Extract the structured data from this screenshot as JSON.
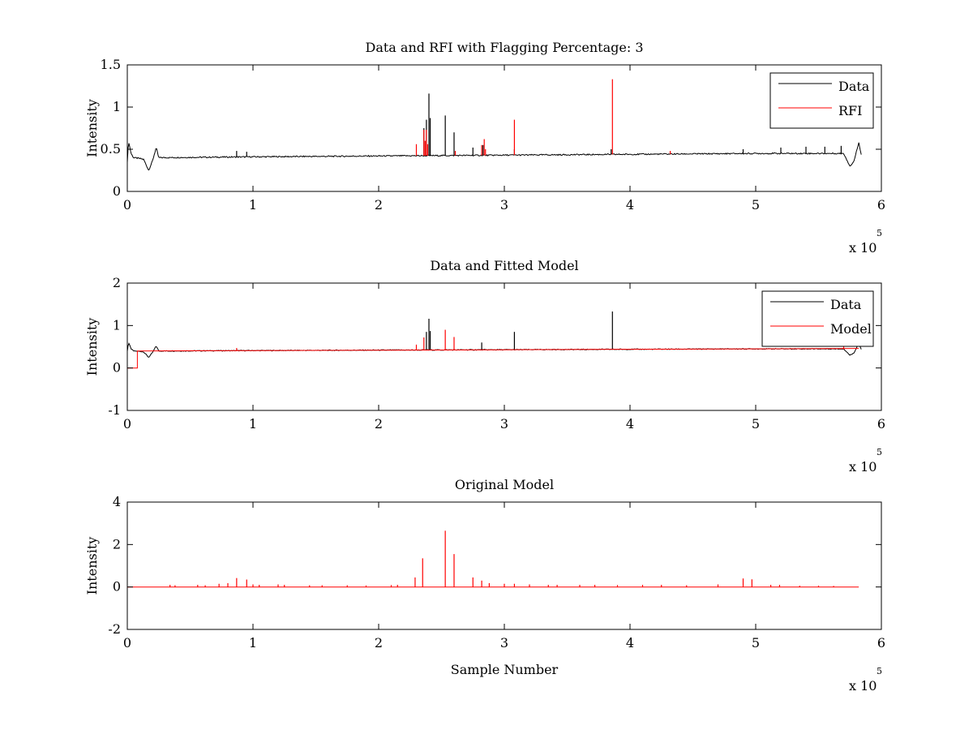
{
  "chart_data": [
    {
      "type": "line",
      "title": "Data and RFI with Flagging Percentage: 3",
      "xlabel": "",
      "ylabel": "Intensity",
      "xlim": [
        0,
        6
      ],
      "ylim": [
        0,
        1.5
      ],
      "xticks": [
        0,
        1,
        2,
        3,
        4,
        5,
        6
      ],
      "yticks": [
        0,
        0.5,
        1,
        1.5
      ],
      "x_multiplier": "x 10",
      "x_multiplier_exp": "5",
      "legend": {
        "location": "top-right"
      },
      "baseline": [
        [
          0,
          0.35
        ],
        [
          0.01,
          0.6
        ],
        [
          0.03,
          0.45
        ],
        [
          0.05,
          0.4
        ],
        [
          0.1,
          0.39
        ],
        [
          0.13,
          0.38
        ],
        [
          0.17,
          0.25
        ],
        [
          0.2,
          0.36
        ],
        [
          0.23,
          0.52
        ],
        [
          0.25,
          0.4
        ],
        [
          1,
          0.41
        ],
        [
          2,
          0.42
        ],
        [
          3,
          0.43
        ],
        [
          4,
          0.44
        ],
        [
          5,
          0.45
        ],
        [
          5.7,
          0.45
        ],
        [
          5.75,
          0.3
        ],
        [
          5.78,
          0.35
        ],
        [
          5.82,
          0.58
        ],
        [
          5.84,
          0.44
        ]
      ],
      "series": [
        {
          "name": "Data",
          "color": "#000000",
          "spikes": [
            [
              0.87,
              0.48
            ],
            [
              0.95,
              0.47
            ],
            [
              2.36,
              0.75
            ],
            [
              2.38,
              0.85
            ],
            [
              2.4,
              1.16
            ],
            [
              2.41,
              0.87
            ],
            [
              2.53,
              0.9
            ],
            [
              2.6,
              0.7
            ],
            [
              2.75,
              0.52
            ],
            [
              2.83,
              0.55
            ],
            [
              3.08,
              0.5
            ],
            [
              3.85,
              0.5
            ],
            [
              4.9,
              0.5
            ],
            [
              5.2,
              0.52
            ],
            [
              5.4,
              0.53
            ],
            [
              5.55,
              0.53
            ],
            [
              5.68,
              0.54
            ]
          ]
        },
        {
          "name": "RFI",
          "color": "#ff0000",
          "spikes": [
            [
              2.3,
              0.56
            ],
            [
              2.36,
              0.73
            ],
            [
              2.37,
              0.6
            ],
            [
              2.38,
              0.73
            ],
            [
              2.39,
              0.56
            ],
            [
              2.61,
              0.48
            ],
            [
              2.82,
              0.55
            ],
            [
              2.84,
              0.62
            ],
            [
              2.85,
              0.5
            ],
            [
              3.08,
              0.85
            ],
            [
              3.86,
              1.33
            ],
            [
              4.32,
              0.48
            ]
          ]
        }
      ]
    },
    {
      "type": "line",
      "title": "Data and Fitted Model",
      "xlabel": "",
      "ylabel": "Intensity",
      "xlim": [
        0,
        6
      ],
      "ylim": [
        -1,
        2
      ],
      "xticks": [
        0,
        1,
        2,
        3,
        4,
        5,
        6
      ],
      "yticks": [
        -1,
        0,
        1,
        2
      ],
      "x_multiplier": "x 10",
      "x_multiplier_exp": "5",
      "legend": {
        "location": "top-right"
      },
      "series": [
        {
          "name": "Data",
          "color": "#000000",
          "points": [
            [
              0,
              0.4
            ],
            [
              0.01,
              0.6
            ],
            [
              0.03,
              0.45
            ],
            [
              0.05,
              0.4
            ],
            [
              0.1,
              0.39
            ],
            [
              0.13,
              0.38
            ],
            [
              0.17,
              0.25
            ],
            [
              0.2,
              0.36
            ],
            [
              0.23,
              0.52
            ],
            [
              0.25,
              0.4
            ],
            [
              1,
              0.41
            ],
            [
              2,
              0.42
            ],
            [
              3,
              0.43
            ],
            [
              4,
              0.44
            ],
            [
              5,
              0.45
            ],
            [
              5.7,
              0.45
            ],
            [
              5.75,
              0.3
            ],
            [
              5.78,
              0.35
            ],
            [
              5.82,
              0.58
            ],
            [
              5.84,
              0.44
            ]
          ],
          "spikes": [
            [
              2.38,
              0.85
            ],
            [
              2.4,
              1.16
            ],
            [
              2.41,
              0.87
            ],
            [
              2.82,
              0.6
            ],
            [
              3.08,
              0.85
            ],
            [
              3.86,
              1.33
            ]
          ]
        },
        {
          "name": "Model",
          "color": "#ff0000",
          "points": [
            [
              0,
              0
            ],
            [
              0.08,
              0
            ],
            [
              0.08,
              0.4
            ],
            [
              1,
              0.41
            ],
            [
              2,
              0.42
            ],
            [
              3,
              0.43
            ],
            [
              4,
              0.44
            ],
            [
              5,
              0.45
            ],
            [
              5.82,
              0.46
            ]
          ],
          "spikes": [
            [
              0.87,
              0.47
            ],
            [
              2.3,
              0.55
            ],
            [
              2.36,
              0.72
            ],
            [
              2.53,
              0.9
            ],
            [
              2.6,
              0.73
            ],
            [
              5.7,
              0.52
            ]
          ]
        }
      ]
    },
    {
      "type": "line",
      "title": "Original Model",
      "xlabel": "Sample Number",
      "ylabel": "Intensity",
      "xlim": [
        0,
        6
      ],
      "ylim": [
        -2,
        4
      ],
      "xticks": [
        0,
        1,
        2,
        3,
        4,
        5,
        6
      ],
      "yticks": [
        -2,
        0,
        2,
        4
      ],
      "x_multiplier": "x 10",
      "x_multiplier_exp": "5",
      "series": [
        {
          "name": "",
          "color": "#ff0000",
          "points": [
            [
              0,
              0
            ],
            [
              5.82,
              0
            ]
          ],
          "spikes": [
            [
              0.34,
              0.1
            ],
            [
              0.38,
              0.08
            ],
            [
              0.56,
              0.1
            ],
            [
              0.62,
              0.08
            ],
            [
              0.73,
              0.15
            ],
            [
              0.8,
              0.18
            ],
            [
              0.87,
              0.42
            ],
            [
              0.95,
              0.35
            ],
            [
              1.0,
              0.12
            ],
            [
              1.05,
              0.1
            ],
            [
              1.2,
              0.12
            ],
            [
              1.25,
              0.1
            ],
            [
              1.45,
              0.08
            ],
            [
              1.55,
              0.08
            ],
            [
              1.75,
              0.08
            ],
            [
              1.9,
              0.07
            ],
            [
              2.1,
              0.09
            ],
            [
              2.15,
              0.1
            ],
            [
              2.29,
              0.45
            ],
            [
              2.35,
              1.35
            ],
            [
              2.53,
              2.65
            ],
            [
              2.6,
              1.55
            ],
            [
              2.75,
              0.45
            ],
            [
              2.82,
              0.3
            ],
            [
              2.88,
              0.18
            ],
            [
              3.0,
              0.15
            ],
            [
              3.08,
              0.15
            ],
            [
              3.2,
              0.12
            ],
            [
              3.35,
              0.1
            ],
            [
              3.42,
              0.1
            ],
            [
              3.6,
              0.1
            ],
            [
              3.72,
              0.1
            ],
            [
              3.9,
              0.09
            ],
            [
              4.1,
              0.1
            ],
            [
              4.25,
              0.1
            ],
            [
              4.45,
              0.08
            ],
            [
              4.7,
              0.12
            ],
            [
              4.9,
              0.4
            ],
            [
              4.97,
              0.36
            ],
            [
              5.12,
              0.1
            ],
            [
              5.19,
              0.1
            ],
            [
              5.35,
              0.06
            ],
            [
              5.5,
              0.06
            ],
            [
              5.62,
              0.05
            ]
          ]
        }
      ]
    }
  ]
}
